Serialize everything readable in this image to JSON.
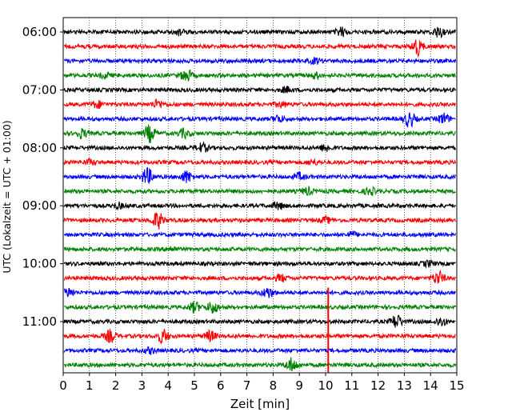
{
  "chart_data": {
    "type": "line",
    "title": "",
    "xlabel": "Zeit  [min]",
    "ylabel": "UTC (Lokalzeit = UTC + 01:00)",
    "xlim": [
      0,
      15
    ],
    "x_ticks": [
      "0",
      "1",
      "2",
      "3",
      "4",
      "5",
      "6",
      "7",
      "8",
      "9",
      "10",
      "11",
      "12",
      "13",
      "14",
      "15"
    ],
    "y_tick_labels": [
      "06:00",
      "07:00",
      "08:00",
      "09:00",
      "10:00",
      "11:00"
    ],
    "grid": "vertical dotted at each minute",
    "rows_per_hour": 4,
    "trace_colors": [
      "#000000",
      "#ff0000",
      "#0000ff",
      "#008000"
    ],
    "traces": [
      {
        "start": "06:00",
        "events": [
          [
            4.4,
            0.3
          ],
          [
            10.6,
            0.5
          ],
          [
            14.3,
            0.6
          ]
        ]
      },
      {
        "start": "06:15",
        "events": [
          [
            13.5,
            1.0
          ]
        ]
      },
      {
        "start": "06:30",
        "events": [
          [
            9.6,
            0.3
          ]
        ]
      },
      {
        "start": "06:45",
        "events": [
          [
            1.6,
            0.3
          ],
          [
            4.7,
            0.7
          ],
          [
            9.6,
            0.3
          ]
        ]
      },
      {
        "start": "07:00",
        "events": [
          [
            8.5,
            0.3
          ]
        ]
      },
      {
        "start": "07:15",
        "events": [
          [
            1.3,
            0.4
          ],
          [
            3.6,
            0.5
          ],
          [
            8.3,
            0.3
          ]
        ]
      },
      {
        "start": "07:30",
        "events": [
          [
            8.2,
            0.4
          ],
          [
            13.2,
            0.9
          ],
          [
            14.5,
            0.6
          ]
        ]
      },
      {
        "start": "07:45",
        "events": [
          [
            0.7,
            0.5
          ],
          [
            3.3,
            1.0
          ],
          [
            4.6,
            0.5
          ]
        ]
      },
      {
        "start": "08:00",
        "events": [
          [
            5.3,
            0.5
          ],
          [
            10.0,
            0.4
          ]
        ]
      },
      {
        "start": "08:15",
        "events": [
          [
            1.0,
            0.3
          ],
          [
            9.5,
            0.3
          ]
        ]
      },
      {
        "start": "08:30",
        "events": [
          [
            3.2,
            1.0
          ],
          [
            4.7,
            0.7
          ],
          [
            9.0,
            0.4
          ]
        ]
      },
      {
        "start": "08:45",
        "events": [
          [
            9.3,
            0.4
          ],
          [
            11.7,
            0.4
          ]
        ]
      },
      {
        "start": "09:00",
        "events": [
          [
            2.1,
            0.3
          ],
          [
            8.2,
            0.4
          ]
        ]
      },
      {
        "start": "09:15",
        "events": [
          [
            3.6,
            1.0
          ],
          [
            10.0,
            0.3
          ]
        ]
      },
      {
        "start": "09:30",
        "events": [
          [
            11.0,
            0.3
          ]
        ]
      },
      {
        "start": "09:45",
        "events": [
          [
            4.1,
            0.3
          ]
        ]
      },
      {
        "start": "10:00",
        "events": [
          [
            13.9,
            0.3
          ]
        ]
      },
      {
        "start": "10:15",
        "events": [
          [
            8.3,
            0.4
          ],
          [
            14.3,
            0.8
          ]
        ]
      },
      {
        "start": "10:30",
        "events": [
          [
            0.2,
            0.5
          ],
          [
            7.8,
            0.6
          ]
        ]
      },
      {
        "start": "10:45",
        "events": [
          [
            5.0,
            0.6
          ],
          [
            5.7,
            0.7
          ]
        ]
      },
      {
        "start": "11:00",
        "events": [
          [
            12.7,
            0.8
          ],
          [
            14.4,
            0.5
          ]
        ]
      },
      {
        "start": "11:15",
        "events": [
          [
            1.8,
            0.7
          ],
          [
            3.8,
            0.8
          ],
          [
            5.6,
            0.6
          ]
        ]
      },
      {
        "start": "11:30",
        "events": [
          [
            3.3,
            0.3
          ]
        ]
      },
      {
        "start": "11:45",
        "events": [
          [
            8.7,
            0.8
          ]
        ]
      }
    ],
    "spikes": [
      {
        "start": "10:45",
        "x": 10.1,
        "color": "#ff0000",
        "up_rows": 0.45,
        "down_rows": 4.5
      }
    ]
  }
}
